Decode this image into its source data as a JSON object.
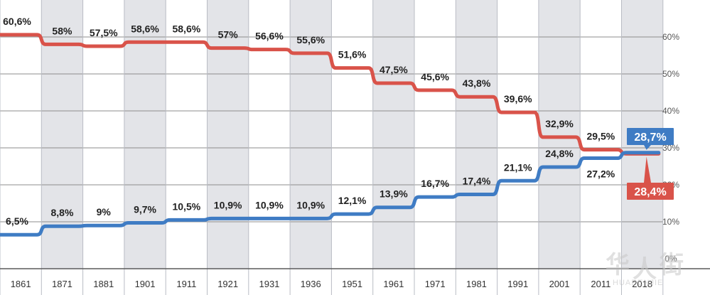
{
  "chart_data": {
    "type": "line",
    "title": "",
    "xlabel": "",
    "ylabel": "",
    "categories": [
      "1861",
      "1871",
      "1881",
      "1901",
      "1911",
      "1921",
      "1931",
      "1936",
      "1951",
      "1961",
      "1971",
      "1981",
      "1991",
      "2001",
      "2011",
      "2018"
    ],
    "ylim": [
      0,
      65
    ],
    "y_ticks": [
      {
        "value": 0,
        "label": "0%"
      },
      {
        "value": 10,
        "label": "10%"
      },
      {
        "value": 20,
        "label": "20%"
      },
      {
        "value": 30,
        "label": "30%"
      },
      {
        "value": 40,
        "label": "40%"
      },
      {
        "value": 50,
        "label": "50%"
      },
      {
        "value": 60,
        "label": "60%"
      }
    ],
    "grid": true,
    "alternating_column_shading": true,
    "series": [
      {
        "color": "#d9534a",
        "values": [
          60.6,
          58,
          57.5,
          58.6,
          58.6,
          57,
          56.6,
          55.6,
          51.6,
          47.5,
          45.6,
          43.8,
          39.6,
          32.9,
          29.5,
          28.4
        ],
        "labels": [
          "60,6%",
          "58%",
          "57,5%",
          "58,6%",
          "58,6%",
          "57%",
          "56,6%",
          "55,6%",
          "51,6%",
          "47,5%",
          "45,6%",
          "43,8%",
          "39,6%",
          "32,9%",
          "29,5%",
          "28,4%"
        ]
      },
      {
        "color": "#3f7cc4",
        "values": [
          6.5,
          8.8,
          9,
          9.7,
          10.5,
          10.9,
          10.9,
          10.9,
          12.1,
          13.9,
          16.7,
          17.4,
          21.1,
          24.8,
          27.2,
          28.7
        ],
        "labels": [
          "6,5%",
          "8,8%",
          "9%",
          "9,7%",
          "10,5%",
          "10,9%",
          "10,9%",
          "10,9%",
          "12,1%",
          "13,9%",
          "16,7%",
          "17,4%",
          "21,1%",
          "24,8%",
          "27,2%",
          "28,7%"
        ]
      }
    ],
    "final_value_badges": [
      {
        "series_index": 1,
        "label": "28,7%",
        "color": "#3f7cc4"
      },
      {
        "series_index": 0,
        "label": "28,4%",
        "color": "#d9534a"
      }
    ]
  },
  "watermark": {
    "glyphs": [
      "华",
      "人",
      "街"
    ],
    "subtext": "HUARENJIE"
  }
}
